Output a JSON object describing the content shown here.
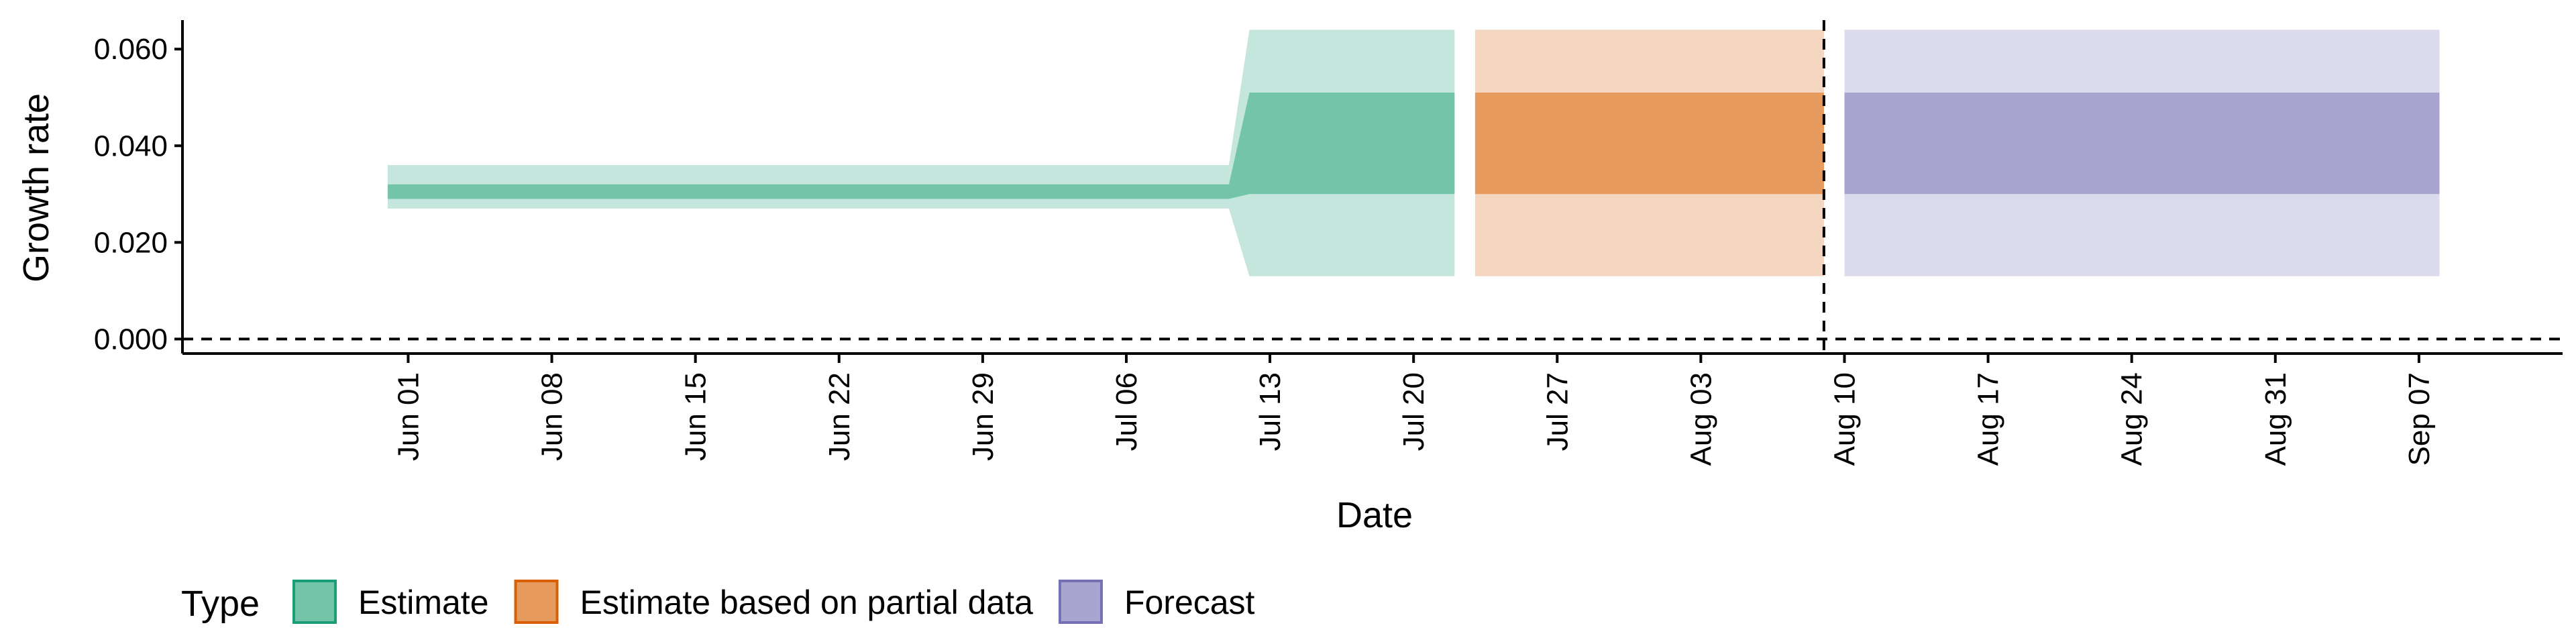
{
  "chart_data": {
    "type": "area",
    "xlabel": "Date",
    "ylabel": "Growth rate",
    "x_axis_type": "date",
    "y_range": [
      -0.003,
      0.066
    ],
    "x_range": [
      "2020-05-21",
      "2020-09-14"
    ],
    "yticks": [
      {
        "value": 0.0,
        "label": "0.000"
      },
      {
        "value": 0.02,
        "label": "0.020"
      },
      {
        "value": 0.04,
        "label": "0.040"
      },
      {
        "value": 0.06,
        "label": "0.060"
      }
    ],
    "xticks": [
      {
        "date": "2020-06-01",
        "label": "Jun 01"
      },
      {
        "date": "2020-06-08",
        "label": "Jun 08"
      },
      {
        "date": "2020-06-15",
        "label": "Jun 15"
      },
      {
        "date": "2020-06-22",
        "label": "Jun 22"
      },
      {
        "date": "2020-06-29",
        "label": "Jun 29"
      },
      {
        "date": "2020-07-06",
        "label": "Jul 06"
      },
      {
        "date": "2020-07-13",
        "label": "Jul 13"
      },
      {
        "date": "2020-07-20",
        "label": "Jul 20"
      },
      {
        "date": "2020-07-27",
        "label": "Jul 27"
      },
      {
        "date": "2020-08-03",
        "label": "Aug 03"
      },
      {
        "date": "2020-08-10",
        "label": "Aug 10"
      },
      {
        "date": "2020-08-17",
        "label": "Aug 17"
      },
      {
        "date": "2020-08-24",
        "label": "Aug 24"
      },
      {
        "date": "2020-08-31",
        "label": "Aug 31"
      },
      {
        "date": "2020-09-07",
        "label": "Sep 07"
      }
    ],
    "series": [
      {
        "name": "Estimate",
        "color": "#74c4aa",
        "outer_color": "#c5e6dc",
        "segments": [
          {
            "points": [
              {
                "x": "2020-05-31",
                "lower90": 0.027,
                "lower50": 0.029,
                "upper50": 0.032,
                "upper90": 0.036
              },
              {
                "x": "2020-07-11",
                "lower90": 0.027,
                "lower50": 0.029,
                "upper50": 0.032,
                "upper90": 0.036
              },
              {
                "x": "2020-07-12",
                "lower90": 0.013,
                "lower50": 0.03,
                "upper50": 0.051,
                "upper90": 0.064
              },
              {
                "x": "2020-07-22",
                "lower90": 0.013,
                "lower50": 0.03,
                "upper50": 0.051,
                "upper90": 0.064
              }
            ]
          }
        ]
      },
      {
        "name": "Estimate based on partial data",
        "color": "#e69a5e",
        "outer_color": "#f4d5bf",
        "segments": [
          {
            "points": [
              {
                "x": "2020-07-23",
                "lower90": 0.013,
                "lower50": 0.03,
                "upper50": 0.051,
                "upper90": 0.064
              },
              {
                "x": "2020-08-09",
                "lower90": 0.013,
                "lower50": 0.03,
                "upper50": 0.051,
                "upper90": 0.064
              }
            ]
          }
        ]
      },
      {
        "name": "Forecast",
        "color": "#a8a5d0",
        "outer_color": "#dcdbeb",
        "segments": [
          {
            "points": [
              {
                "x": "2020-08-10",
                "lower90": 0.013,
                "lower50": 0.03,
                "upper50": 0.051,
                "upper90": 0.064
              },
              {
                "x": "2020-09-08",
                "lower90": 0.013,
                "lower50": 0.03,
                "upper50": 0.051,
                "upper90": 0.064
              }
            ]
          }
        ]
      }
    ],
    "reference_lines": [
      {
        "axis": "y",
        "value": 0.0,
        "style": "dashed"
      },
      {
        "axis": "x",
        "value": "2020-08-09",
        "style": "dashed"
      }
    ],
    "legend": {
      "title": "Type",
      "position": "bottom-left",
      "items": [
        {
          "label": "Estimate",
          "fill": "#74c4aa",
          "border": "#1b9e77"
        },
        {
          "label": "Estimate based on partial data",
          "fill": "#e69a5e",
          "border": "#d95f02"
        },
        {
          "label": "Forecast",
          "fill": "#a8a5d0",
          "border": "#7570b3"
        }
      ]
    },
    "grid": false
  }
}
